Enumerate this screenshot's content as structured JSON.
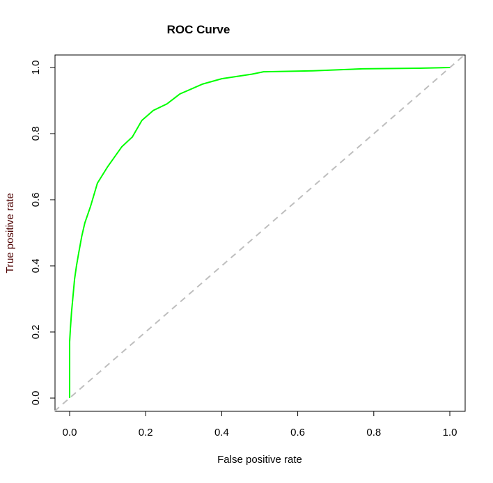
{
  "chart_data": {
    "type": "line",
    "title": "ROC Curve",
    "xlabel": "False positive rate",
    "ylabel": "True positive rate",
    "xlim": [
      0,
      1
    ],
    "ylim": [
      0,
      1
    ],
    "grid": false,
    "xticks": [
      "0.0",
      "0.2",
      "0.4",
      "0.6",
      "0.8",
      "1.0"
    ],
    "yticks": [
      "0.0",
      "0.2",
      "0.4",
      "0.6",
      "0.8",
      "1.0"
    ],
    "colors": {
      "curve": "#00ff00",
      "diagonal": "#bebebe",
      "ylabel": "#4d0000"
    },
    "series": [
      {
        "x": [
          0,
          0,
          0.002,
          0.005,
          0.009,
          0.013,
          0.018,
          0.024,
          0.032,
          0.04,
          0.055,
          0.073,
          0.1,
          0.137,
          0.165,
          0.19,
          0.22,
          0.256,
          0.29,
          0.35,
          0.4,
          0.48,
          0.51,
          0.64,
          0.77,
          0.92,
          1.0
        ],
        "y": [
          0,
          0.17,
          0.21,
          0.26,
          0.31,
          0.36,
          0.4,
          0.44,
          0.49,
          0.53,
          0.58,
          0.65,
          0.7,
          0.76,
          0.79,
          0.84,
          0.87,
          0.89,
          0.92,
          0.95,
          0.966,
          0.98,
          0.987,
          0.99,
          0.996,
          0.998,
          1.0
        ]
      }
    ],
    "reference_line": {
      "x": [
        0,
        1
      ],
      "y": [
        0,
        1
      ],
      "style": "dashed"
    }
  }
}
